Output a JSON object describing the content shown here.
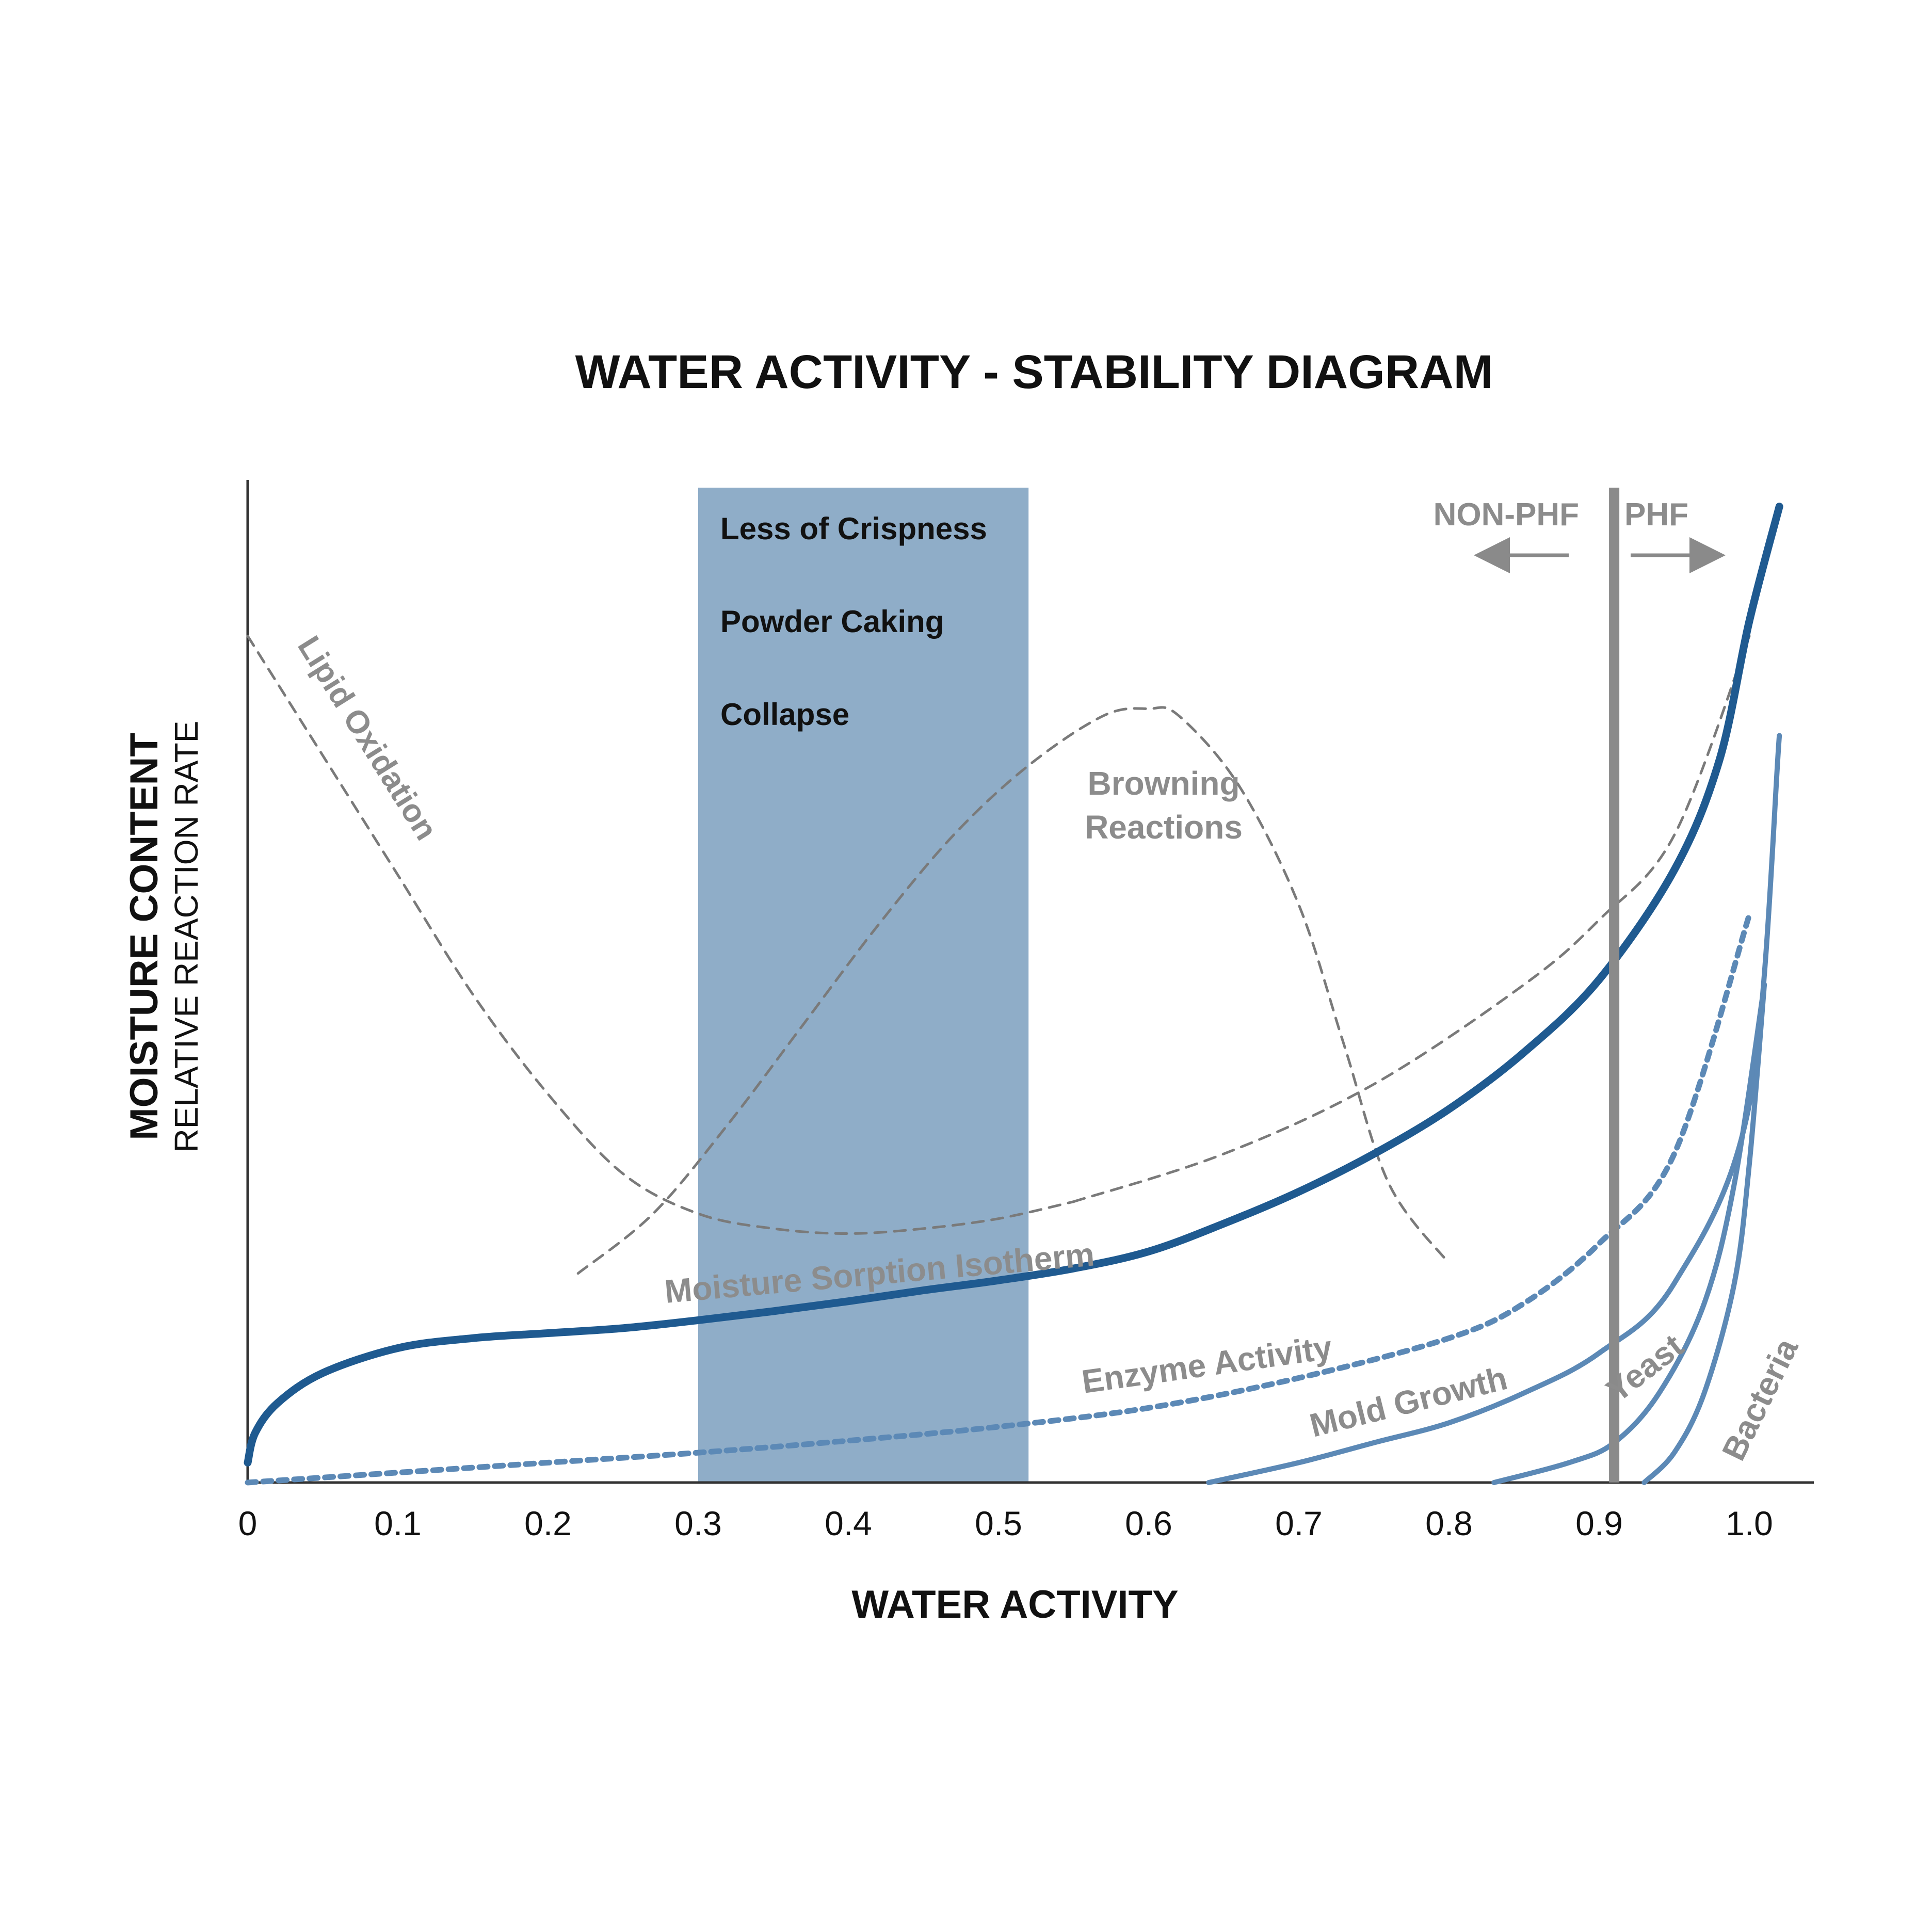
{
  "colors": {
    "band": "#8fadc8",
    "dark_blue": "#1f5a90",
    "mid_blue": "#5c89b6",
    "grey_line": "#7a7a7a",
    "phf_line": "#8a8a8a",
    "text_dark": "#111111",
    "text_grey": "#8c8c8c",
    "axis": "#333333"
  },
  "chart_data": {
    "type": "line",
    "title": "WATER ACTIVITY - STABILITY DIAGRAM",
    "xlabel": "WATER ACTIVITY",
    "ylabel": "MOISTURE CONTENT",
    "ylabel_secondary": "RELATIVE REACTION RATE",
    "xlim": [
      0,
      1.05
    ],
    "ylim": [
      0,
      1
    ],
    "x_ticks": [
      0,
      0.1,
      0.2,
      0.3,
      0.4,
      0.5,
      0.6,
      0.7,
      0.8,
      0.9,
      1.0
    ],
    "x_tick_labels": [
      "0",
      "0.1",
      "0.2",
      "0.3",
      "0.4",
      "0.5",
      "0.6",
      "0.7",
      "0.8",
      "0.9",
      "1.0"
    ],
    "band": {
      "x_range": [
        0.3,
        0.52
      ],
      "labels": [
        "Less of Crispness",
        "Powder Caking",
        "Collapse"
      ]
    },
    "threshold": {
      "x": 0.91,
      "left_label": "NON-PHF",
      "right_label": "PHF"
    },
    "series": [
      {
        "name": "Moisture Sorption Isotherm",
        "style": "solid-thick",
        "x": [
          0.0,
          0.005,
          0.02,
          0.05,
          0.1,
          0.15,
          0.2,
          0.25,
          0.3,
          0.35,
          0.4,
          0.45,
          0.5,
          0.55,
          0.6,
          0.65,
          0.7,
          0.75,
          0.8,
          0.85,
          0.9,
          0.95,
          0.98,
          1.0,
          1.02
        ],
        "y": [
          0.02,
          0.05,
          0.08,
          0.11,
          0.135,
          0.145,
          0.15,
          0.155,
          0.163,
          0.172,
          0.182,
          0.193,
          0.203,
          0.215,
          0.232,
          0.26,
          0.292,
          0.33,
          0.375,
          0.432,
          0.505,
          0.615,
          0.725,
          0.865,
          0.98
        ]
      },
      {
        "name": "Lipid Oxidation",
        "style": "dashed",
        "x": [
          0.0,
          0.05,
          0.1,
          0.15,
          0.2,
          0.25,
          0.3,
          0.35,
          0.4,
          0.45,
          0.5,
          0.55
        ],
        "y": [
          0.85,
          0.73,
          0.61,
          0.49,
          0.39,
          0.31,
          0.27,
          0.255,
          0.25,
          0.255,
          0.265,
          0.282
        ]
      },
      {
        "name": "Browning Reactions",
        "style": "dashed",
        "x": [
          0.22,
          0.27,
          0.32,
          0.37,
          0.42,
          0.47,
          0.52,
          0.57,
          0.6,
          0.62,
          0.66,
          0.7,
          0.73,
          0.76,
          0.8
        ],
        "y": [
          0.21,
          0.27,
          0.36,
          0.46,
          0.56,
          0.65,
          0.72,
          0.77,
          0.777,
          0.77,
          0.7,
          0.58,
          0.44,
          0.3,
          0.22
        ]
      },
      {
        "name": "Lipid Oxidation (rising)",
        "style": "dashed",
        "x": [
          0.55,
          0.65,
          0.75,
          0.85,
          0.9,
          0.95,
          1.0
        ],
        "y": [
          0.282,
          0.33,
          0.4,
          0.5,
          0.565,
          0.65,
          0.85
        ]
      },
      {
        "name": "Enzyme Activity",
        "style": "dotted",
        "x": [
          0.0,
          0.1,
          0.2,
          0.3,
          0.4,
          0.5,
          0.6,
          0.7,
          0.8,
          0.85,
          0.9,
          0.95,
          1.0
        ],
        "y": [
          0.0,
          0.01,
          0.02,
          0.03,
          0.042,
          0.056,
          0.075,
          0.105,
          0.145,
          0.18,
          0.24,
          0.33,
          0.57
        ]
      },
      {
        "name": "Mold Growth",
        "style": "solid",
        "x": [
          0.64,
          0.7,
          0.75,
          0.8,
          0.85,
          0.9,
          0.95,
          1.0,
          1.02
        ],
        "y": [
          0.0,
          0.02,
          0.04,
          0.06,
          0.09,
          0.13,
          0.2,
          0.38,
          0.75
        ]
      },
      {
        "name": "Yeast",
        "style": "solid",
        "x": [
          0.83,
          0.88,
          0.91,
          0.94,
          0.97,
          0.99,
          1.01
        ],
        "y": [
          0.0,
          0.02,
          0.04,
          0.09,
          0.18,
          0.3,
          0.5
        ]
      },
      {
        "name": "Bacteria",
        "style": "solid",
        "x": [
          0.93,
          0.95,
          0.97,
          0.99,
          1.0,
          1.01
        ],
        "y": [
          0.0,
          0.03,
          0.09,
          0.2,
          0.32,
          0.5
        ]
      }
    ],
    "annotations": [
      {
        "text": "Lipid Oxidation",
        "target": "Lipid Oxidation"
      },
      {
        "text": "Browning",
        "target": "Browning Reactions"
      },
      {
        "text": "Reactions",
        "target": "Browning Reactions"
      },
      {
        "text": "Moisture Sorption Isotherm",
        "target": "Moisture Sorption Isotherm"
      },
      {
        "text": "Enzyme Activity",
        "target": "Enzyme Activity"
      },
      {
        "text": "Mold Growth",
        "target": "Mold Growth"
      },
      {
        "text": "Yeast",
        "target": "Yeast"
      },
      {
        "text": "Bacteria",
        "target": "Bacteria"
      }
    ]
  }
}
